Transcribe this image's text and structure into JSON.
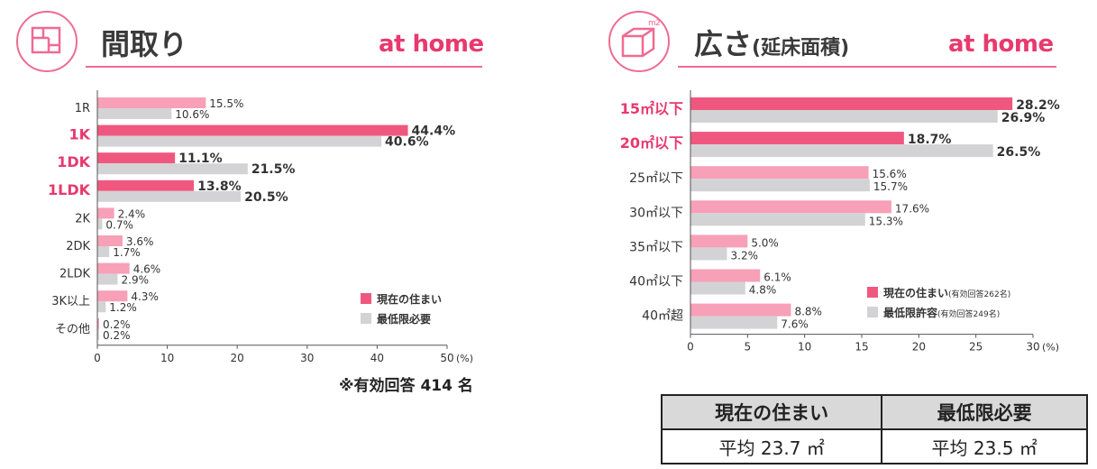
{
  "colors": {
    "current": "#f0577f",
    "current_light": "#f7a0b8",
    "minimum": "#d3d3d5",
    "accent": "#e8396d"
  },
  "left_header": {
    "title": "間取り",
    "brand": "at home",
    "icon": "floorplan-icon"
  },
  "right_header": {
    "title": "広さ",
    "subtitle": "(延床面積)",
    "brand": "at home",
    "icon": "room-cube-icon"
  },
  "left_note": "※有効回答 414 名",
  "chart_data": [
    {
      "type": "bar",
      "orientation": "horizontal",
      "categories": [
        "1R",
        "1K",
        "1DK",
        "1LDK",
        "2K",
        "2DK",
        "2LDK",
        "3K以上",
        "その他"
      ],
      "highlight_categories": [
        "1K",
        "1DK",
        "1LDK"
      ],
      "series": [
        {
          "name": "現在の住まい",
          "values": [
            15.5,
            44.4,
            11.1,
            13.8,
            2.4,
            3.6,
            4.6,
            4.3,
            0.2
          ]
        },
        {
          "name": "最低限必要",
          "values": [
            10.6,
            40.6,
            21.5,
            20.5,
            0.7,
            1.7,
            2.9,
            1.2,
            0.2
          ]
        }
      ],
      "xlim": [
        0,
        50
      ],
      "xticks": [
        "0",
        "10",
        "20",
        "30",
        "40",
        "50"
      ],
      "unit_label": "(%)",
      "legend_position": "bottom-right",
      "grid": false
    },
    {
      "type": "bar",
      "orientation": "horizontal",
      "categories": [
        "15㎡以下",
        "20㎡以下",
        "25㎡以下",
        "30㎡以下",
        "35㎡以下",
        "40㎡以下",
        "40㎡超"
      ],
      "highlight_categories": [
        "15㎡以下",
        "20㎡以下"
      ],
      "series": [
        {
          "name": "現在の住まい",
          "name_note": "(有効回答262名)",
          "values": [
            28.2,
            18.7,
            15.6,
            17.6,
            5.0,
            6.1,
            8.8
          ]
        },
        {
          "name": "最低限許容",
          "name_note": "(有効回答249名)",
          "values": [
            26.9,
            26.5,
            15.7,
            15.3,
            3.2,
            4.8,
            7.6
          ]
        }
      ],
      "xlim": [
        0,
        30
      ],
      "xticks": [
        "0",
        "5",
        "10",
        "15",
        "20",
        "25",
        "30"
      ],
      "unit_label": "(%)",
      "legend_position": "bottom-right",
      "grid": false
    }
  ],
  "average_table": {
    "headers": [
      "現在の住まい",
      "最低限必要"
    ],
    "values": [
      "平均 23.7 ㎡",
      "平均 23.5 ㎡"
    ]
  }
}
